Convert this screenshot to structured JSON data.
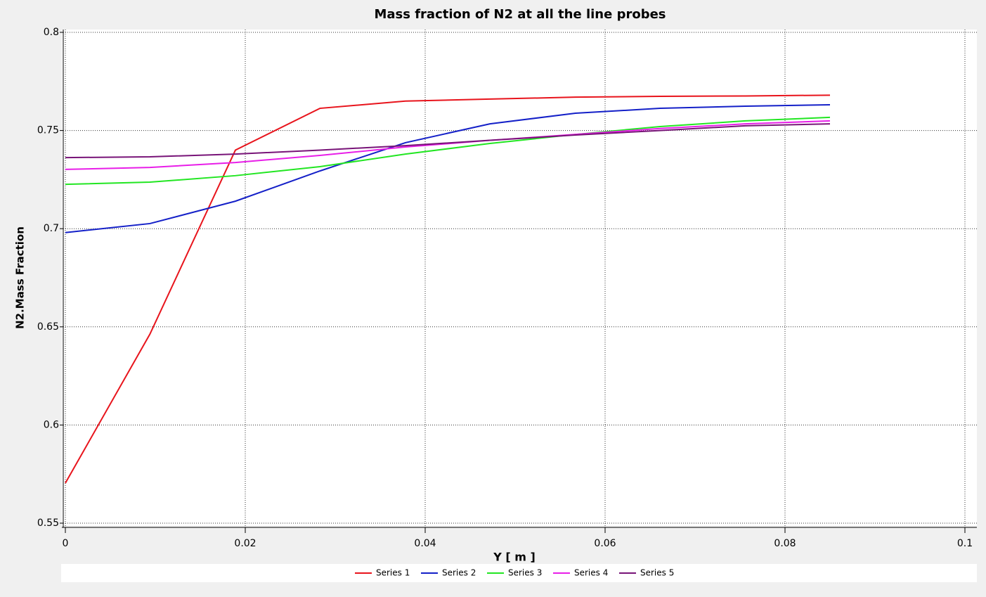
{
  "chart_data": {
    "type": "line",
    "title": "Mass fraction of N2 at all the line probes",
    "x_label": "Y [ m ]",
    "y_label": "N2.Mass Fraction",
    "x": [
      0,
      0.0094,
      0.0189,
      0.0283,
      0.0378,
      0.0472,
      0.0567,
      0.0661,
      0.0756,
      0.085
    ],
    "series": [
      {
        "name": "Series 1",
        "color": "#e8141c",
        "values": [
          0.5704,
          0.6463,
          0.74,
          0.7613,
          0.765,
          0.766,
          0.767,
          0.7674,
          0.7676,
          0.768
        ]
      },
      {
        "name": "Series 2",
        "color": "#1420c8",
        "values": [
          0.698,
          0.7026,
          0.714,
          0.7294,
          0.7438,
          0.7534,
          0.7588,
          0.7613,
          0.7624,
          0.7631
        ]
      },
      {
        "name": "Series 3",
        "color": "#22e622",
        "values": [
          0.7226,
          0.7237,
          0.727,
          0.7316,
          0.738,
          0.7434,
          0.748,
          0.752,
          0.7549,
          0.7567
        ]
      },
      {
        "name": "Series 4",
        "color": "#e81ee8",
        "values": [
          0.7302,
          0.7312,
          0.7337,
          0.7373,
          0.7416,
          0.745,
          0.748,
          0.751,
          0.7534,
          0.7549
        ]
      },
      {
        "name": "Series 5",
        "color": "#781478",
        "values": [
          0.7362,
          0.7366,
          0.738,
          0.74,
          0.7423,
          0.745,
          0.7477,
          0.75,
          0.7524,
          0.7534
        ]
      }
    ],
    "xlim": [
      0,
      0.1
    ],
    "xticks": [
      0,
      0.02,
      0.04,
      0.06,
      0.08,
      0.1
    ],
    "ylim": [
      0.55,
      0.8
    ],
    "yticks": [
      0.55,
      0.6,
      0.65,
      0.7,
      0.75,
      0.8
    ],
    "grid": true,
    "legend": "bottom"
  }
}
